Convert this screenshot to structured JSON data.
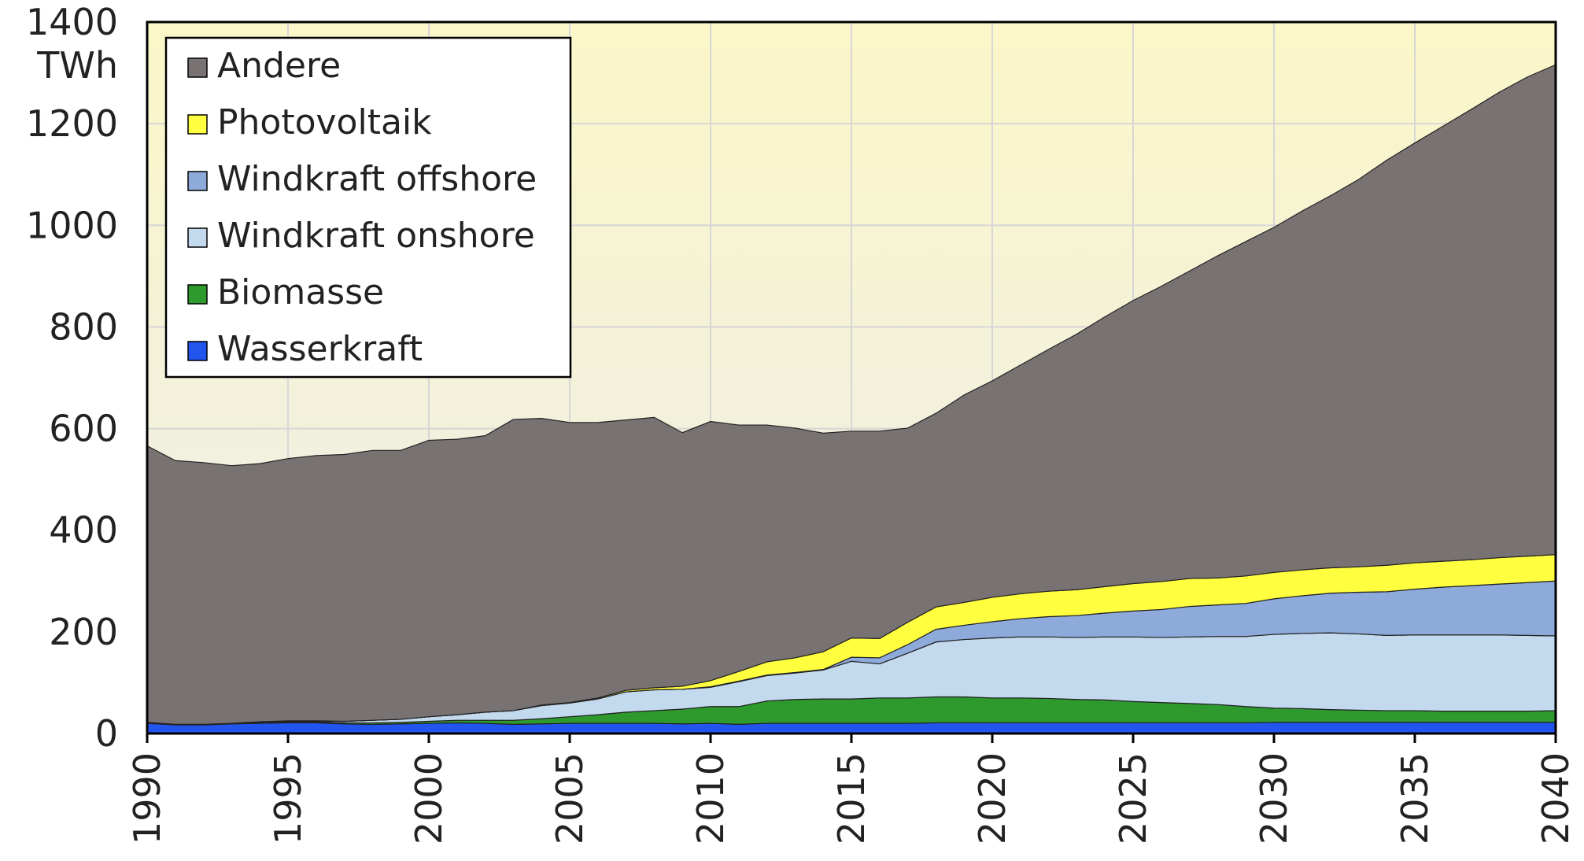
{
  "chart_data": {
    "type": "stacked-area",
    "y_label": "TWh",
    "x": [
      1990,
      1991,
      1992,
      1993,
      1994,
      1995,
      1996,
      1997,
      1998,
      1999,
      2000,
      2001,
      2002,
      2003,
      2004,
      2005,
      2006,
      2007,
      2008,
      2009,
      2010,
      2011,
      2012,
      2013,
      2014,
      2015,
      2016,
      2017,
      2018,
      2019,
      2020,
      2021,
      2022,
      2023,
      2024,
      2025,
      2026,
      2027,
      2028,
      2029,
      2030,
      2031,
      2032,
      2033,
      2034,
      2035,
      2036,
      2037,
      2038,
      2039,
      2040
    ],
    "xlim": [
      1990,
      2040
    ],
    "xticks": [
      1990,
      1995,
      2000,
      2005,
      2010,
      2015,
      2020,
      2025,
      2030,
      2035,
      2040
    ],
    "ylim": [
      0,
      1400
    ],
    "yticks": [
      0,
      200,
      400,
      600,
      800,
      1000,
      1200,
      1400
    ],
    "grid": true,
    "legend": "top-left",
    "series": [
      {
        "name": "Wasserkraft",
        "color": "#2255ee",
        "values": [
          20,
          17,
          17,
          19,
          20,
          21,
          21,
          19,
          18,
          19,
          20,
          21,
          20,
          18,
          19,
          20,
          20,
          20,
          20,
          19,
          20,
          18,
          20,
          20,
          20,
          20,
          20,
          20,
          21,
          21,
          21,
          21,
          21,
          21,
          21,
          21,
          21,
          21,
          21,
          21,
          22,
          22,
          22,
          22,
          22,
          22,
          22,
          22,
          22,
          22,
          22
        ]
      },
      {
        "name": "Biomasse",
        "color": "#2e9a2e",
        "values": [
          2,
          1,
          1,
          1,
          2,
          2,
          2,
          2,
          3,
          3,
          4,
          5,
          6,
          8,
          10,
          13,
          17,
          22,
          25,
          29,
          33,
          35,
          44,
          47,
          48,
          48,
          50,
          50,
          51,
          51,
          49,
          49,
          48,
          46,
          45,
          42,
          40,
          38,
          36,
          32,
          28,
          27,
          25,
          24,
          23,
          23,
          22,
          22,
          22,
          22,
          23
        ]
      },
      {
        "name": "Windkraft onshore",
        "color": "#c3d9ee",
        "values": [
          0,
          0,
          0,
          0,
          1,
          2,
          2,
          3,
          5,
          6,
          9,
          11,
          16,
          19,
          26,
          27,
          31,
          40,
          41,
          39,
          38,
          49,
          50,
          52,
          57,
          74,
          67,
          88,
          108,
          113,
          118,
          120,
          121,
          122,
          124,
          127,
          128,
          131,
          134,
          138,
          145,
          148,
          151,
          150,
          148,
          149,
          150,
          150,
          150,
          149,
          147
        ]
      },
      {
        "name": "Windkraft offshore",
        "color": "#8eaadb",
        "values": [
          0,
          0,
          0,
          0,
          0,
          0,
          0,
          0,
          0,
          0,
          0,
          0,
          0,
          0,
          0,
          0,
          0,
          0,
          0,
          0,
          1,
          1,
          1,
          1,
          1,
          8,
          12,
          17,
          25,
          28,
          32,
          36,
          40,
          43,
          47,
          51,
          55,
          60,
          62,
          65,
          70,
          74,
          78,
          82,
          86,
          90,
          94,
          97,
          100,
          104,
          108
        ]
      },
      {
        "name": "Photovoltaik",
        "color": "#ffff40",
        "values": [
          0,
          0,
          0,
          0,
          0,
          0,
          0,
          0,
          0,
          0,
          0,
          0,
          0,
          0,
          1,
          1,
          2,
          3,
          4,
          6,
          12,
          19,
          26,
          29,
          35,
          38,
          38,
          44,
          44,
          45,
          48,
          49,
          50,
          51,
          52,
          54,
          55,
          55,
          53,
          54,
          52,
          51,
          50,
          50,
          52,
          52,
          51,
          51,
          52,
          52,
          52
        ]
      },
      {
        "name": "Andere",
        "color": "#787372",
        "values": [
          544,
          519,
          515,
          507,
          508,
          516,
          522,
          525,
          531,
          529,
          544,
          542,
          544,
          573,
          564,
          551,
          542,
          532,
          532,
          499,
          510,
          485,
          466,
          452,
          430,
          407,
          408,
          382,
          381,
          408,
          426,
          450,
          476,
          503,
          531,
          557,
          581,
          605,
          634,
          658,
          679,
          706,
          732,
          762,
          797,
          826,
          856,
          886,
          916,
          943,
          964
        ]
      }
    ]
  }
}
